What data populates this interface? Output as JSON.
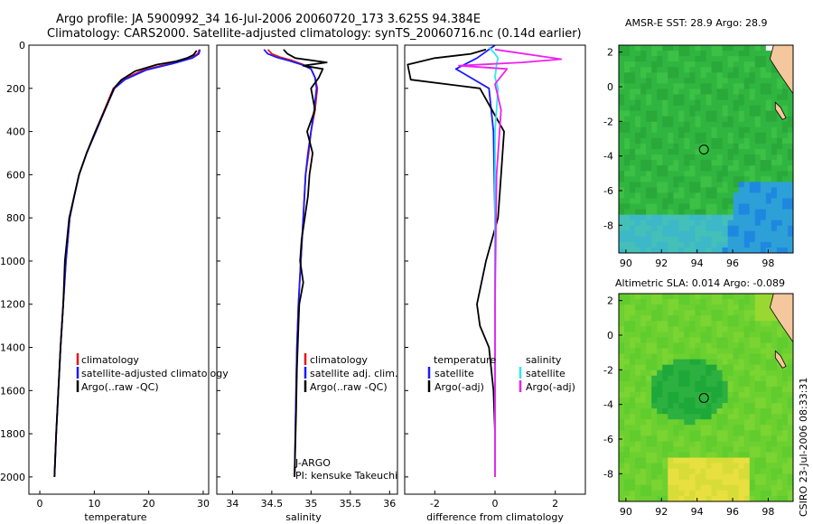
{
  "header": {
    "line1": "Argo profile: JA 5900992_34 16-Jul-2006 20060720_173 3.625S 94.384E",
    "line2": "Climatology: CARS2000. Satellite-adjusted climatology: synTS_20060716.nc (0.14d earlier)"
  },
  "credit": "CSIRO 23-Jul-2006 08:33:31",
  "colors": {
    "red": "#e8141a",
    "blue": "#1a1aff",
    "black": "#000000",
    "cyan": "#2ee8f0",
    "magenta": "#ee1ff0",
    "land": "#f4c79c",
    "sst_main": "#2fbf3a",
    "sst_deep": "#2aa0c8",
    "sla_main": "#50c830"
  },
  "chart_data": [
    {
      "type": "line",
      "id": "temperature",
      "xlabel": "temperature",
      "xlim": [
        -2,
        31
      ],
      "ylim": [
        2080,
        0
      ],
      "xticks": [
        0,
        10,
        20,
        30
      ],
      "yticks": [
        0,
        200,
        400,
        600,
        800,
        1000,
        1200,
        1400,
        1600,
        1800,
        2000
      ],
      "series": [
        {
          "name": "climatology",
          "color": "red",
          "x": [
            29.3,
            29.0,
            27.5,
            24.0,
            19.0,
            15.2,
            13.5,
            12.2,
            10.2,
            8.6,
            7.2,
            6.3,
            5.5,
            4.8,
            4.3,
            3.8,
            3.4,
            3.0,
            2.7
          ],
          "y": [
            20,
            40,
            60,
            85,
            115,
            160,
            200,
            280,
            400,
            500,
            600,
            700,
            800,
            1000,
            1200,
            1400,
            1600,
            1800,
            2000
          ]
        },
        {
          "name": "satellite-adjusted climatology",
          "color": "blue",
          "x": [
            29.4,
            29.2,
            28.0,
            24.5,
            19.5,
            15.6,
            13.7,
            12.3,
            10.3,
            8.6,
            7.2,
            6.3,
            5.5,
            4.8,
            4.3,
            3.8,
            3.4,
            3.0,
            2.7
          ],
          "y": [
            20,
            40,
            60,
            85,
            115,
            160,
            200,
            280,
            400,
            500,
            600,
            700,
            800,
            1000,
            1200,
            1400,
            1600,
            1800,
            2000
          ]
        },
        {
          "name": "Argo(..raw -QC)",
          "color": "black",
          "x": [
            28.8,
            28.2,
            27.0,
            25.0,
            21.5,
            17.5,
            15.0,
            13.6,
            12.3,
            10.2,
            8.6,
            7.2,
            6.3,
            5.4,
            4.6,
            4.3,
            3.8,
            3.4,
            3.0,
            2.7
          ],
          "y": [
            25,
            45,
            60,
            75,
            90,
            120,
            160,
            200,
            280,
            400,
            500,
            600,
            700,
            800,
            1000,
            1200,
            1400,
            1600,
            1800,
            2000
          ]
        }
      ],
      "legend": {
        "position": "lower-right",
        "entries": [
          "climatology",
          "satellite-adjusted climatology",
          "Argo(..raw -QC)"
        ]
      }
    },
    {
      "type": "line",
      "id": "salinity",
      "xlabel": "salinity",
      "xlim": [
        33.8,
        36.1
      ],
      "ylim": [
        2080,
        0
      ],
      "xticks": [
        34,
        34.5,
        35,
        35.5,
        36
      ],
      "xtick_labels": [
        "34",
        "34.5",
        "35",
        "35.5",
        "36"
      ],
      "series": [
        {
          "name": "climatology",
          "color": "red",
          "x": [
            34.45,
            34.5,
            34.6,
            34.75,
            34.9,
            35.0,
            35.05,
            35.08,
            35.05,
            35.0,
            34.97,
            34.93,
            34.9,
            34.87,
            34.84,
            34.82,
            34.81,
            34.79
          ],
          "y": [
            20,
            40,
            55,
            70,
            90,
            110,
            150,
            200,
            300,
            400,
            500,
            600,
            800,
            1000,
            1200,
            1400,
            1600,
            2000
          ]
        },
        {
          "name": "satellite adj. clim.",
          "color": "blue",
          "x": [
            34.4,
            34.45,
            34.55,
            34.7,
            34.88,
            35.0,
            35.05,
            35.07,
            35.04,
            35.0,
            34.96,
            34.93,
            34.9,
            34.87,
            34.84,
            34.82,
            34.81,
            34.79
          ],
          "y": [
            20,
            40,
            55,
            70,
            90,
            110,
            150,
            200,
            300,
            400,
            500,
            600,
            800,
            1000,
            1200,
            1400,
            1600,
            2000
          ]
        },
        {
          "name": "Argo(..raw -QC)",
          "color": "black",
          "x": [
            34.65,
            34.7,
            34.8,
            35.2,
            34.9,
            35.15,
            35.1,
            35.0,
            35.05,
            34.95,
            35.02,
            34.98,
            34.96,
            34.92,
            34.88,
            34.86,
            34.9,
            34.85,
            34.84,
            34.82,
            34.81,
            34.79
          ],
          "y": [
            20,
            40,
            60,
            80,
            95,
            110,
            150,
            200,
            300,
            400,
            500,
            600,
            700,
            800,
            900,
            1000,
            1100,
            1200,
            1300,
            1500,
            1700,
            2000
          ]
        }
      ],
      "legend": {
        "position": "lower-right",
        "entries": [
          "climatology",
          "satellite adj. clim.",
          "Argo(..raw -QC)"
        ]
      },
      "annotations": [
        "J-ARGO",
        "PI: kensuke Takeuchi"
      ]
    },
    {
      "type": "line",
      "id": "difference",
      "xlabel": "difference from climatology",
      "xlim": [
        -3,
        3
      ],
      "ylim": [
        2080,
        0
      ],
      "xticks": [
        -2,
        0,
        2
      ],
      "series": [
        {
          "name": "temperature satellite",
          "color": "blue",
          "x": [
            0.0,
            -0.6,
            -1.3,
            -0.2,
            -0.05,
            0.0,
            0.0,
            0.0,
            0.0,
            0.0
          ],
          "y": [
            0,
            60,
            110,
            200,
            400,
            800,
            1200,
            1600,
            1800,
            2000
          ]
        },
        {
          "name": "temperature Argo(-adj)",
          "color": "black",
          "x": [
            -0.3,
            -0.8,
            -2.0,
            -2.9,
            -2.8,
            -0.5,
            0.3,
            0.2,
            0.1,
            -0.3,
            -0.6,
            -0.5,
            -0.2,
            -0.05,
            0.0,
            0.0
          ],
          "y": [
            20,
            40,
            60,
            90,
            160,
            200,
            400,
            600,
            800,
            1000,
            1200,
            1300,
            1400,
            1600,
            1800,
            2000
          ]
        },
        {
          "name": "salinity satellite",
          "color": "cyan",
          "x": [
            -0.2,
            0.0,
            0.1,
            0.05,
            0.0,
            0.1,
            0.0,
            0.0,
            0.0,
            0.0,
            0.0
          ],
          "y": [
            10,
            40,
            60,
            90,
            150,
            200,
            400,
            800,
            1200,
            1600,
            2000
          ]
        },
        {
          "name": "salinity Argo(-adj)",
          "color": "magenta",
          "x": [
            0.0,
            2.2,
            0.9,
            -1.2,
            0.4,
            0.0,
            0.2,
            0.05,
            0.0,
            0.0
          ],
          "y": [
            20,
            65,
            80,
            95,
            110,
            180,
            300,
            600,
            1200,
            2000
          ]
        }
      ],
      "legend": {
        "position": "lower-right",
        "col1_title": "temperature",
        "col2_title": "salinity",
        "entries": [
          "satellite",
          "Argo(-adj)",
          "satellite",
          "Argo(-adj)"
        ]
      }
    },
    {
      "type": "heatmap",
      "id": "sst_map",
      "title": "AMSR-E SST: 28.9  Argo: 28.9",
      "xlim": [
        89.6,
        99.4
      ],
      "ylim": [
        -9.6,
        2.4
      ],
      "xticks": [
        90,
        92,
        94,
        96,
        98
      ],
      "yticks": [
        2,
        0,
        -2,
        -4,
        -6,
        -8
      ],
      "argo_position": [
        94.384,
        -3.625
      ]
    },
    {
      "type": "heatmap",
      "id": "sla_map",
      "title": "Altimetric SLA: 0.014  Argo: -0.089",
      "xlim": [
        89.6,
        99.4
      ],
      "ylim": [
        -9.6,
        2.4
      ],
      "xticks": [
        90,
        92,
        94,
        96,
        98
      ],
      "yticks": [
        2,
        0,
        -2,
        -4,
        -6,
        -8
      ],
      "argo_position": [
        94.384,
        -3.625
      ]
    }
  ]
}
